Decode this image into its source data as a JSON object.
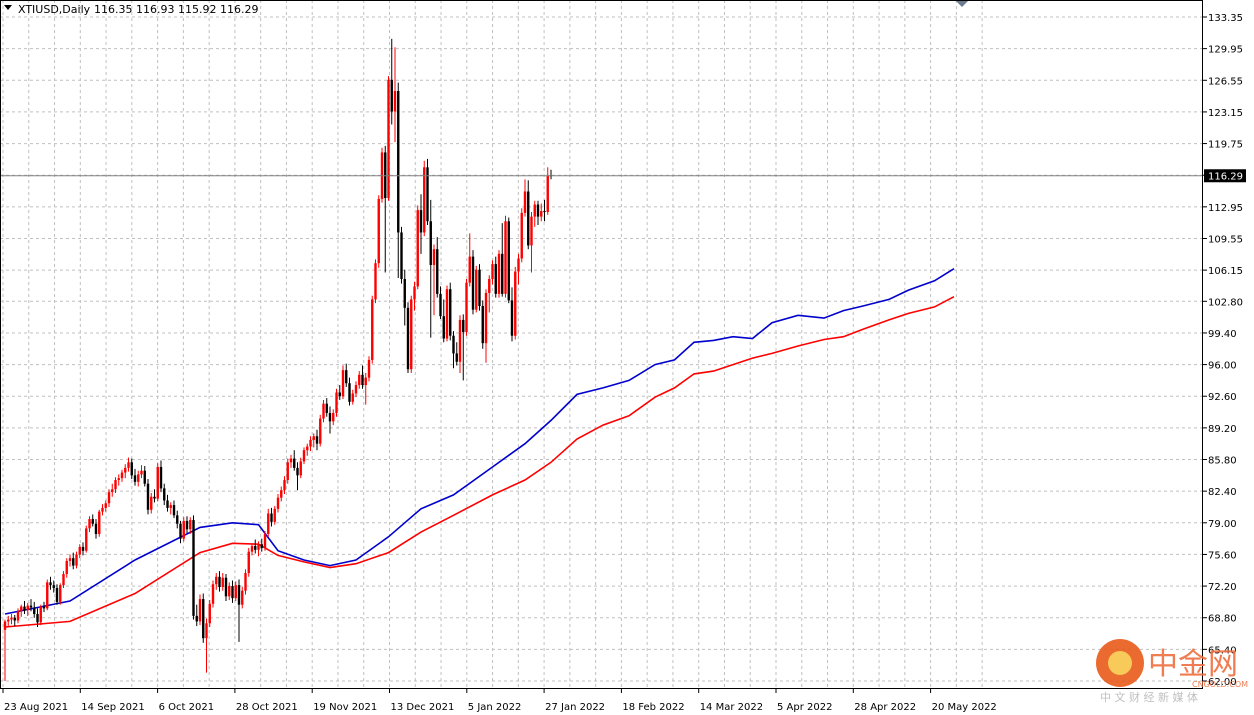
{
  "chart_data": {
    "type": "candlestick",
    "symbol": "XTIUSD,Daily",
    "ohlc_header": "116.35 116.93 115.92 116.29",
    "current_price": "116.29",
    "y_ticks": [
      "133.35",
      "129.95",
      "126.55",
      "123.15",
      "119.75",
      "116.35",
      "112.95",
      "109.55",
      "106.15",
      "102.80",
      "99.40",
      "96.00",
      "92.60",
      "89.20",
      "85.80",
      "82.40",
      "79.00",
      "75.60",
      "72.20",
      "68.80",
      "65.40",
      "62.00"
    ],
    "ylim": [
      62.0,
      133.35
    ],
    "x_ticks": [
      "23 Aug 2021",
      "14 Sep 2021",
      "6 Oct 2021",
      "28 Oct 2021",
      "19 Nov 2021",
      "13 Dec 2021",
      "5 Jan 2022",
      "27 Jan 2022",
      "18 Feb 2022",
      "14 Mar 2022",
      "5 Apr 2022",
      "28 Apr 2022",
      "20 May 2022"
    ],
    "grid": true,
    "colors": {
      "up": "#ff0000",
      "down": "#000000",
      "ma_fast": "#0000cc",
      "ma_slow": "#ff0000",
      "grid": "#c0c0c0",
      "price_line": "#808080"
    },
    "candles": [
      [
        67.5,
        68.6,
        62.0,
        68.4
      ],
      [
        68.4,
        69.0,
        67.8,
        68.6
      ],
      [
        68.6,
        69.2,
        68.1,
        68.8
      ],
      [
        68.8,
        69.1,
        67.9,
        68.5
      ],
      [
        68.5,
        69.8,
        68.2,
        69.5
      ],
      [
        69.5,
        70.2,
        68.9,
        70.0
      ],
      [
        70.0,
        70.6,
        69.2,
        69.6
      ],
      [
        69.6,
        70.4,
        69.0,
        70.1
      ],
      [
        70.1,
        70.8,
        69.5,
        69.9
      ],
      [
        69.9,
        70.5,
        68.8,
        69.2
      ],
      [
        69.2,
        69.8,
        67.8,
        68.3
      ],
      [
        68.3,
        70.2,
        68.0,
        70.0
      ],
      [
        70.0,
        70.5,
        69.4,
        69.8
      ],
      [
        69.8,
        72.9,
        69.6,
        72.6
      ],
      [
        72.6,
        73.2,
        71.8,
        72.3
      ],
      [
        72.3,
        72.8,
        71.5,
        72.0
      ],
      [
        72.0,
        72.4,
        70.2,
        70.5
      ],
      [
        70.5,
        72.5,
        70.2,
        72.3
      ],
      [
        72.3,
        73.8,
        72.0,
        73.5
      ],
      [
        73.5,
        75.2,
        73.1,
        74.9
      ],
      [
        74.9,
        75.6,
        74.3,
        75.2
      ],
      [
        75.2,
        75.8,
        74.0,
        74.4
      ],
      [
        74.4,
        75.9,
        74.1,
        75.6
      ],
      [
        75.6,
        76.7,
        75.2,
        76.4
      ],
      [
        76.4,
        76.9,
        75.5,
        76.0
      ],
      [
        76.0,
        78.7,
        75.8,
        78.4
      ],
      [
        78.4,
        79.7,
        78.0,
        79.4
      ],
      [
        79.4,
        79.9,
        78.6,
        78.9
      ],
      [
        78.9,
        79.4,
        77.3,
        77.8
      ],
      [
        77.8,
        80.4,
        77.5,
        80.2
      ],
      [
        80.2,
        81.0,
        79.8,
        80.6
      ],
      [
        80.6,
        81.4,
        80.2,
        81.1
      ],
      [
        81.1,
        82.6,
        80.7,
        82.3
      ],
      [
        82.3,
        83.2,
        81.8,
        82.6
      ],
      [
        82.6,
        83.9,
        82.2,
        83.6
      ],
      [
        83.6,
        84.2,
        83.0,
        83.8
      ],
      [
        83.8,
        84.7,
        83.4,
        84.4
      ],
      [
        84.4,
        85.3,
        83.8,
        84.9
      ],
      [
        84.9,
        86.0,
        84.5,
        85.5
      ],
      [
        85.5,
        85.9,
        83.7,
        84.1
      ],
      [
        84.1,
        84.8,
        83.0,
        83.4
      ],
      [
        83.4,
        84.6,
        82.9,
        84.2
      ],
      [
        84.2,
        85.2,
        83.8,
        84.6
      ],
      [
        84.6,
        85.1,
        82.9,
        83.2
      ],
      [
        83.2,
        83.7,
        79.9,
        80.4
      ],
      [
        80.4,
        82.2,
        80.0,
        81.8
      ],
      [
        81.8,
        82.6,
        81.2,
        81.6
      ],
      [
        81.6,
        85.4,
        81.3,
        85.0
      ],
      [
        85.0,
        85.7,
        82.3,
        82.7
      ],
      [
        82.7,
        83.2,
        80.9,
        81.4
      ],
      [
        81.4,
        82.0,
        80.2,
        80.6
      ],
      [
        80.6,
        81.2,
        79.9,
        80.9
      ],
      [
        80.9,
        81.4,
        79.5,
        79.8
      ],
      [
        79.8,
        80.3,
        78.4,
        78.9
      ],
      [
        78.9,
        79.2,
        76.8,
        77.3
      ],
      [
        77.3,
        79.6,
        77.0,
        79.2
      ],
      [
        79.2,
        79.7,
        77.9,
        78.3
      ],
      [
        78.3,
        79.6,
        77.8,
        79.3
      ],
      [
        79.3,
        79.8,
        68.6,
        69.0
      ],
      [
        69.0,
        70.2,
        67.9,
        68.4
      ],
      [
        68.4,
        71.3,
        68.0,
        70.8
      ],
      [
        70.8,
        71.4,
        66.1,
        66.6
      ],
      [
        66.6,
        68.7,
        62.9,
        68.2
      ],
      [
        68.2,
        70.7,
        67.8,
        70.3
      ],
      [
        70.3,
        72.8,
        69.9,
        72.4
      ],
      [
        72.4,
        73.6,
        71.8,
        73.2
      ],
      [
        73.2,
        73.8,
        71.6,
        72.1
      ],
      [
        72.1,
        73.6,
        71.7,
        73.1
      ],
      [
        73.1,
        73.5,
        70.6,
        71.1
      ],
      [
        71.1,
        72.6,
        70.7,
        72.2
      ],
      [
        72.2,
        72.8,
        70.4,
        70.9
      ],
      [
        70.9,
        72.7,
        70.6,
        72.3
      ],
      [
        72.3,
        72.9,
        66.2,
        70.2
      ],
      [
        70.2,
        72.1,
        69.8,
        71.7
      ],
      [
        71.7,
        74.0,
        71.3,
        73.6
      ],
      [
        73.6,
        76.3,
        73.2,
        75.9
      ],
      [
        75.9,
        76.8,
        75.5,
        76.5
      ],
      [
        76.5,
        77.2,
        75.7,
        76.1
      ],
      [
        76.1,
        77.0,
        75.4,
        76.7
      ],
      [
        76.7,
        77.3,
        75.9,
        76.3
      ],
      [
        76.3,
        78.1,
        76.0,
        77.8
      ],
      [
        77.8,
        80.5,
        77.5,
        80.0
      ],
      [
        80.0,
        80.6,
        78.6,
        79.1
      ],
      [
        79.1,
        80.8,
        78.8,
        80.5
      ],
      [
        80.5,
        82.1,
        80.1,
        81.7
      ],
      [
        81.7,
        82.9,
        81.3,
        82.5
      ],
      [
        82.5,
        84.0,
        82.1,
        83.6
      ],
      [
        83.6,
        85.9,
        83.2,
        85.5
      ],
      [
        85.5,
        86.3,
        84.9,
        85.9
      ],
      [
        85.9,
        86.8,
        84.6,
        84.9
      ],
      [
        84.9,
        85.5,
        82.5,
        84.1
      ],
      [
        84.1,
        86.0,
        83.8,
        85.6
      ],
      [
        85.6,
        87.1,
        85.3,
        86.8
      ],
      [
        86.8,
        87.5,
        86.2,
        87.2
      ],
      [
        87.2,
        88.3,
        86.7,
        87.9
      ],
      [
        87.9,
        88.6,
        87.1,
        88.3
      ],
      [
        88.3,
        89.0,
        86.8,
        87.5
      ],
      [
        87.5,
        90.6,
        87.2,
        90.2
      ],
      [
        90.2,
        92.2,
        89.8,
        91.8
      ],
      [
        91.8,
        92.4,
        90.4,
        90.8
      ],
      [
        90.8,
        91.5,
        88.6,
        89.9
      ],
      [
        89.9,
        91.2,
        89.5,
        90.8
      ],
      [
        90.8,
        93.4,
        90.4,
        93.0
      ],
      [
        93.0,
        93.8,
        92.2,
        92.6
      ],
      [
        92.6,
        95.9,
        92.3,
        95.4
      ],
      [
        95.4,
        96.1,
        93.6,
        94.0
      ],
      [
        94.0,
        94.6,
        91.6,
        92.0
      ],
      [
        92.0,
        93.3,
        91.7,
        92.9
      ],
      [
        92.9,
        94.2,
        92.5,
        93.8
      ],
      [
        93.8,
        95.3,
        93.4,
        94.9
      ],
      [
        94.9,
        95.9,
        93.4,
        93.8
      ],
      [
        93.8,
        95.1,
        91.7,
        94.6
      ],
      [
        94.6,
        96.9,
        94.2,
        96.5
      ],
      [
        96.5,
        103.4,
        96.1,
        103.0
      ],
      [
        103.0,
        107.3,
        102.6,
        106.9
      ],
      [
        106.9,
        114.2,
        106.4,
        113.8
      ],
      [
        113.8,
        119.3,
        113.4,
        118.8
      ],
      [
        118.8,
        119.5,
        105.9,
        113.9
      ],
      [
        113.9,
        127.0,
        113.6,
        126.6
      ],
      [
        126.6,
        131.0,
        121.8,
        123.2
      ],
      [
        123.2,
        130.1,
        119.9,
        125.4
      ],
      [
        125.4,
        126.3,
        105.3,
        110.2
      ],
      [
        110.2,
        110.8,
        104.7,
        105.2
      ],
      [
        105.2,
        106.2,
        100.2,
        102.1
      ],
      [
        102.1,
        102.7,
        95.1,
        95.5
      ],
      [
        95.5,
        103.4,
        95.1,
        103.0
      ],
      [
        103.0,
        104.9,
        101.8,
        104.4
      ],
      [
        104.4,
        113.1,
        104.1,
        112.6
      ],
      [
        112.6,
        114.3,
        107.9,
        110.2
      ],
      [
        110.2,
        117.9,
        109.8,
        117.2
      ],
      [
        117.2,
        118.1,
        111.0,
        111.4
      ],
      [
        111.4,
        113.7,
        98.9,
        106.7
      ],
      [
        106.7,
        108.9,
        101.3,
        108.4
      ],
      [
        108.4,
        109.7,
        103.2,
        103.6
      ],
      [
        103.6,
        104.4,
        100.9,
        101.2
      ],
      [
        101.2,
        103.0,
        98.4,
        98.8
      ],
      [
        98.8,
        104.5,
        98.5,
        104.1
      ],
      [
        104.1,
        104.8,
        98.6,
        99.1
      ],
      [
        99.1,
        99.6,
        95.6,
        97.2
      ],
      [
        97.2,
        98.4,
        95.9,
        96.3
      ],
      [
        96.3,
        101.3,
        95.1,
        100.8
      ],
      [
        100.8,
        101.4,
        94.3,
        99.5
      ],
      [
        99.5,
        105.2,
        99.1,
        104.8
      ],
      [
        104.8,
        110.1,
        104.4,
        107.6
      ],
      [
        107.6,
        108.3,
        101.4,
        101.9
      ],
      [
        101.9,
        106.6,
        101.6,
        106.2
      ],
      [
        106.2,
        106.8,
        101.8,
        102.3
      ],
      [
        102.3,
        102.9,
        97.7,
        98.3
      ],
      [
        98.3,
        104.1,
        96.2,
        103.7
      ],
      [
        103.7,
        105.6,
        101.6,
        105.2
      ],
      [
        105.2,
        107.2,
        104.6,
        106.8
      ],
      [
        106.8,
        107.6,
        103.2,
        103.6
      ],
      [
        103.6,
        108.3,
        103.2,
        107.9
      ],
      [
        107.9,
        111.2,
        103.3,
        103.6
      ],
      [
        103.6,
        112.0,
        103.2,
        111.4
      ],
      [
        111.4,
        111.8,
        102.6,
        102.9
      ],
      [
        102.9,
        104.3,
        98.5,
        99.1
      ],
      [
        99.1,
        106.5,
        98.7,
        106.0
      ],
      [
        106.0,
        107.9,
        104.6,
        107.4
      ],
      [
        107.4,
        112.8,
        107.0,
        112.3
      ],
      [
        112.3,
        115.9,
        111.9,
        114.6
      ],
      [
        114.6,
        115.8,
        108.4,
        108.8
      ],
      [
        108.8,
        112.4,
        105.9,
        111.9
      ],
      [
        111.9,
        113.6,
        110.8,
        113.2
      ],
      [
        113.2,
        113.6,
        111.0,
        111.9
      ],
      [
        111.9,
        113.3,
        111.4,
        112.5
      ],
      [
        112.5,
        113.7,
        111.4,
        112.4
      ],
      [
        112.4,
        117.2,
        112.1,
        116.3
      ],
      [
        116.35,
        116.93,
        115.92,
        116.29
      ]
    ],
    "ma_fast": [
      [
        0,
        69.2
      ],
      [
        20,
        70.6
      ],
      [
        40,
        75.0
      ],
      [
        60,
        78.5
      ],
      [
        70,
        79.0
      ],
      [
        78,
        78.8
      ],
      [
        84,
        76.0
      ],
      [
        92,
        75.0
      ],
      [
        100,
        74.4
      ],
      [
        108,
        75.0
      ],
      [
        118,
        77.5
      ],
      [
        128,
        80.5
      ],
      [
        138,
        82.0
      ],
      [
        150,
        85.0
      ],
      [
        160,
        87.5
      ],
      [
        168,
        90.0
      ],
      [
        176,
        92.8
      ],
      [
        184,
        93.5
      ],
      [
        192,
        94.3
      ],
      [
        200,
        96.0
      ],
      [
        206,
        96.5
      ],
      [
        212,
        98.4
      ],
      [
        218,
        98.6
      ],
      [
        224,
        99.0
      ],
      [
        230,
        98.8
      ],
      [
        236,
        100.5
      ],
      [
        244,
        101.3
      ],
      [
        252,
        101.0
      ],
      [
        258,
        101.8
      ],
      [
        264,
        102.3
      ],
      [
        272,
        103.0
      ],
      [
        278,
        104.0
      ],
      [
        286,
        105.0
      ],
      [
        292,
        106.3
      ]
    ],
    "ma_slow": [
      [
        0,
        67.8
      ],
      [
        20,
        68.4
      ],
      [
        40,
        71.4
      ],
      [
        60,
        75.8
      ],
      [
        70,
        76.8
      ],
      [
        78,
        76.7
      ],
      [
        84,
        75.5
      ],
      [
        92,
        74.8
      ],
      [
        100,
        74.2
      ],
      [
        108,
        74.6
      ],
      [
        118,
        75.8
      ],
      [
        128,
        78.0
      ],
      [
        138,
        79.8
      ],
      [
        150,
        82.0
      ],
      [
        160,
        83.6
      ],
      [
        168,
        85.5
      ],
      [
        176,
        88.0
      ],
      [
        184,
        89.5
      ],
      [
        192,
        90.5
      ],
      [
        200,
        92.5
      ],
      [
        206,
        93.5
      ],
      [
        212,
        95.0
      ],
      [
        218,
        95.3
      ],
      [
        224,
        96.0
      ],
      [
        230,
        96.7
      ],
      [
        236,
        97.2
      ],
      [
        244,
        98.0
      ],
      [
        252,
        98.7
      ],
      [
        258,
        99.0
      ],
      [
        264,
        99.8
      ],
      [
        272,
        100.8
      ],
      [
        278,
        101.5
      ],
      [
        286,
        102.2
      ],
      [
        292,
        103.3
      ]
    ]
  },
  "watermark": {
    "brand": "中金网",
    "sub": "CNGOLD.COM",
    "tagline": "中 文 财 经 新 媒 体"
  }
}
